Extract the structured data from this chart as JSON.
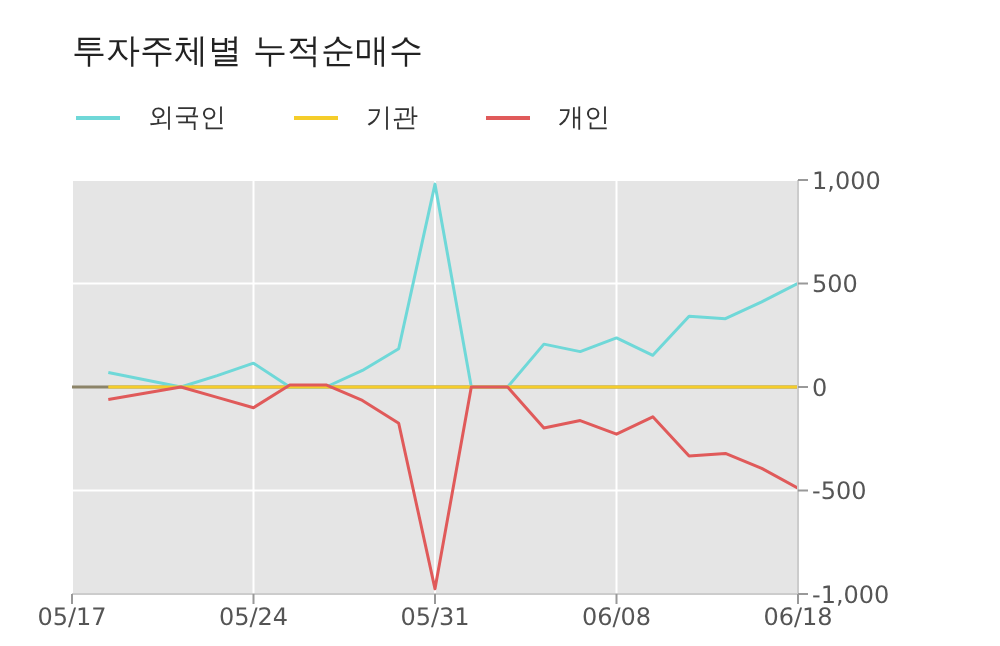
{
  "chart_data": {
    "type": "line",
    "title": "투자주체별 누적순매수",
    "categories": [
      "05/17",
      null,
      null,
      null,
      null,
      "05/24",
      null,
      null,
      null,
      null,
      "05/31",
      null,
      null,
      null,
      null,
      "06/08",
      null,
      null,
      null,
      null,
      "06/18"
    ],
    "series": [
      {
        "name": "외국인",
        "color": "#6fd8d8",
        "values": [
          null,
          70,
          35,
          0,
          55,
          115,
          0,
          0,
          80,
          185,
          980,
          0,
          0,
          207,
          171,
          237,
          153,
          342,
          330,
          411,
          501
        ]
      },
      {
        "name": "기관",
        "color": "#f5cd2a",
        "values": [
          null,
          0,
          0,
          0,
          0,
          0,
          0,
          0,
          0,
          0,
          0,
          0,
          0,
          0,
          0,
          0,
          0,
          0,
          0,
          0,
          0
        ]
      },
      {
        "name": "개인",
        "color": "#e05a5a",
        "values": [
          null,
          -60,
          -30,
          0,
          -50,
          -100,
          10,
          10,
          -65,
          -175,
          -975,
          0,
          0,
          -198,
          -162,
          -228,
          -144,
          -333,
          -321,
          -393,
          -489
        ]
      }
    ],
    "ylim": [
      -1000,
      1000
    ],
    "yticks": [
      {
        "value": -1000,
        "label": "-1,000"
      },
      {
        "value": -500,
        "label": "-500"
      },
      0,
      500,
      {
        "value": 1000,
        "label": "1,000"
      }
    ],
    "ref_lines": [
      {
        "axis": "y",
        "value": 0,
        "color": "#8c8468"
      }
    ],
    "grid": true,
    "legend": "top left",
    "marker": "none",
    "line_style": "solid"
  }
}
